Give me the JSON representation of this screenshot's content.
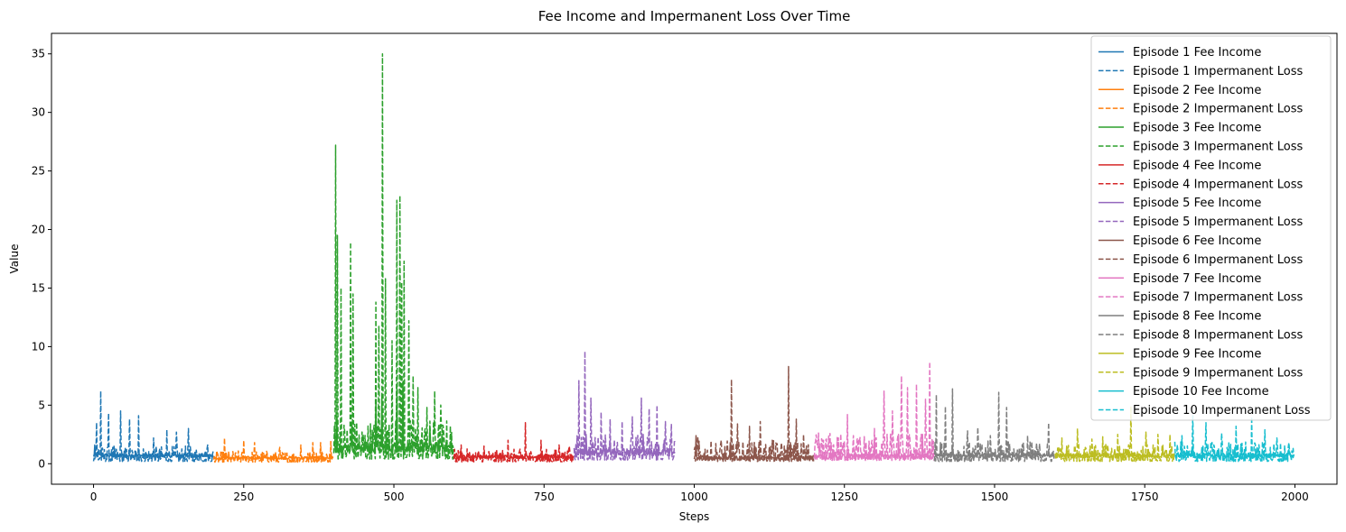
{
  "chart_data": {
    "type": "line",
    "title": "Fee Income and Impermanent Loss Over Time",
    "xlabel": "Steps",
    "ylabel": "Value",
    "xlim": [
      -70,
      2070
    ],
    "ylim": [
      -1.75,
      36.75
    ],
    "xticks": [
      0,
      250,
      500,
      750,
      1000,
      1250,
      1500,
      1750,
      2000
    ],
    "yticks": [
      0,
      5,
      10,
      15,
      20,
      25,
      30,
      35
    ],
    "grid": false,
    "legend_position": "top-right",
    "colors": [
      "#1f77b4",
      "#ff7f0e",
      "#2ca02c",
      "#d62728",
      "#9467bd",
      "#8c564b",
      "#e377c2",
      "#7f7f7f",
      "#bcbd22",
      "#17becf"
    ],
    "series": [
      {
        "name": "Episode 1 Fee Income",
        "episode": 1,
        "style": "solid",
        "x_start": 0,
        "x_end": 199,
        "mean": 0.7,
        "jitter": 0.35,
        "peaks": [
          [
            2,
            1.6
          ],
          [
            8,
            1.2
          ],
          [
            35,
            1.3
          ],
          [
            70,
            1.0
          ],
          [
            120,
            0.9
          ],
          [
            160,
            0.8
          ]
        ]
      },
      {
        "name": "Episode 1 Impermanent Loss",
        "episode": 1,
        "style": "dashed",
        "x_start": 0,
        "x_end": 199,
        "mean": 0.5,
        "jitter": 0.6,
        "peaks": [
          [
            5,
            3.5
          ],
          [
            12,
            6.2
          ],
          [
            25,
            4.3
          ],
          [
            45,
            4.5
          ],
          [
            60,
            3.8
          ],
          [
            75,
            4.1
          ],
          [
            100,
            2.2
          ],
          [
            122,
            2.9
          ],
          [
            138,
            2.7
          ],
          [
            158,
            3.0
          ],
          [
            190,
            1.6
          ]
        ]
      },
      {
        "name": "Episode 2 Fee Income",
        "episode": 2,
        "style": "solid",
        "x_start": 200,
        "x_end": 399,
        "mean": 0.5,
        "jitter": 0.25,
        "peaks": [
          [
            220,
            0.9
          ],
          [
            300,
            0.8
          ],
          [
            380,
            1.0
          ]
        ]
      },
      {
        "name": "Episode 2 Impermanent Loss",
        "episode": 2,
        "style": "dashed",
        "x_start": 200,
        "x_end": 399,
        "mean": 0.35,
        "jitter": 0.45,
        "peaks": [
          [
            218,
            2.2
          ],
          [
            250,
            2.0
          ],
          [
            268,
            1.8
          ],
          [
            310,
            1.4
          ],
          [
            345,
            1.6
          ],
          [
            365,
            1.8
          ],
          [
            378,
            1.8
          ],
          [
            395,
            1.9
          ]
        ]
      },
      {
        "name": "Episode 3 Fee Income",
        "episode": 3,
        "style": "solid",
        "x_start": 400,
        "x_end": 599,
        "mean": 1.4,
        "jitter": 0.9,
        "peaks": [
          [
            405,
            4.0
          ],
          [
            430,
            3.5
          ],
          [
            470,
            5.5
          ],
          [
            480,
            6.0
          ],
          [
            505,
            6.5
          ],
          [
            515,
            7.0
          ],
          [
            560,
            3.0
          ],
          [
            580,
            2.5
          ]
        ]
      },
      {
        "name": "Episode 3 Impermanent Loss",
        "episode": 3,
        "style": "dashed",
        "x_start": 400,
        "x_end": 599,
        "mean": 1.0,
        "jitter": 1.6,
        "peaks": [
          [
            403,
            27.2
          ],
          [
            406,
            19.5
          ],
          [
            412,
            15.0
          ],
          [
            428,
            18.9
          ],
          [
            432,
            14.5
          ],
          [
            470,
            13.8
          ],
          [
            475,
            11.8
          ],
          [
            481,
            35.0
          ],
          [
            486,
            15.8
          ],
          [
            497,
            10.5
          ],
          [
            505,
            22.5
          ],
          [
            510,
            22.9
          ],
          [
            513,
            15.5
          ],
          [
            517,
            17.3
          ],
          [
            525,
            12.2
          ],
          [
            532,
            7.5
          ],
          [
            540,
            6.5
          ],
          [
            555,
            4.8
          ],
          [
            568,
            6.2
          ],
          [
            578,
            5.0
          ]
        ]
      },
      {
        "name": "Episode 4 Fee Income",
        "episode": 4,
        "style": "solid",
        "x_start": 600,
        "x_end": 799,
        "mean": 0.6,
        "jitter": 0.3,
        "peaks": [
          [
            640,
            0.9
          ],
          [
            720,
            1.0
          ],
          [
            780,
            0.9
          ]
        ]
      },
      {
        "name": "Episode 4 Impermanent Loss",
        "episode": 4,
        "style": "dashed",
        "x_start": 600,
        "x_end": 799,
        "mean": 0.4,
        "jitter": 0.5,
        "peaks": [
          [
            612,
            1.6
          ],
          [
            650,
            1.5
          ],
          [
            690,
            2.0
          ],
          [
            719,
            3.5
          ],
          [
            745,
            2.0
          ],
          [
            775,
            1.6
          ],
          [
            792,
            1.5
          ]
        ]
      },
      {
        "name": "Episode 5 Fee Income",
        "episode": 5,
        "style": "solid",
        "x_start": 800,
        "x_end": 968,
        "mean": 1.0,
        "jitter": 0.6,
        "peaks": [
          [
            820,
            2.5
          ],
          [
            860,
            2.0
          ],
          [
            915,
            2.5
          ],
          [
            950,
            2.0
          ]
        ]
      },
      {
        "name": "Episode 5 Impermanent Loss",
        "episode": 5,
        "style": "dashed",
        "x_start": 800,
        "x_end": 968,
        "mean": 0.8,
        "jitter": 1.0,
        "peaks": [
          [
            808,
            7.1
          ],
          [
            818,
            9.6
          ],
          [
            828,
            5.6
          ],
          [
            845,
            4.4
          ],
          [
            860,
            3.8
          ],
          [
            880,
            3.6
          ],
          [
            897,
            4.0
          ],
          [
            912,
            5.6
          ],
          [
            925,
            4.7
          ],
          [
            938,
            5.0
          ],
          [
            952,
            3.6
          ],
          [
            962,
            3.4
          ]
        ]
      },
      {
        "name": "Episode 6 Fee Income",
        "episode": 6,
        "style": "solid",
        "x_start": 1000,
        "x_end": 1199,
        "mean": 0.5,
        "jitter": 0.4,
        "peaks": [
          [
            1003,
            2.4
          ],
          [
            1060,
            1.8
          ],
          [
            1100,
            1.5
          ],
          [
            1160,
            1.8
          ]
        ]
      },
      {
        "name": "Episode 6 Impermanent Loss",
        "episode": 6,
        "style": "dashed",
        "x_start": 1000,
        "x_end": 1199,
        "mean": 0.5,
        "jitter": 0.8,
        "peaks": [
          [
            1006,
            2.3
          ],
          [
            1045,
            2.0
          ],
          [
            1062,
            7.2
          ],
          [
            1072,
            3.4
          ],
          [
            1092,
            3.2
          ],
          [
            1110,
            3.6
          ],
          [
            1130,
            2.0
          ],
          [
            1157,
            8.3
          ],
          [
            1170,
            3.8
          ],
          [
            1182,
            2.5
          ]
        ]
      },
      {
        "name": "Episode 7 Fee Income",
        "episode": 7,
        "style": "solid",
        "x_start": 1200,
        "x_end": 1399,
        "mean": 0.6,
        "jitter": 0.5,
        "peaks": [
          [
            1300,
            2.0
          ],
          [
            1340,
            2.5
          ],
          [
            1380,
            2.5
          ]
        ]
      },
      {
        "name": "Episode 7 Impermanent Loss",
        "episode": 7,
        "style": "dashed",
        "x_start": 1200,
        "x_end": 1399,
        "mean": 0.7,
        "jitter": 1.1,
        "peaks": [
          [
            1215,
            2.0
          ],
          [
            1255,
            4.2
          ],
          [
            1300,
            3.0
          ],
          [
            1316,
            6.2
          ],
          [
            1330,
            4.5
          ],
          [
            1345,
            7.5
          ],
          [
            1355,
            6.5
          ],
          [
            1370,
            6.8
          ],
          [
            1385,
            5.5
          ],
          [
            1392,
            8.7
          ]
        ]
      },
      {
        "name": "Episode 8 Fee Income",
        "episode": 8,
        "style": "solid",
        "x_start": 1400,
        "x_end": 1599,
        "mean": 0.7,
        "jitter": 0.4,
        "peaks": [
          [
            1410,
            1.8
          ],
          [
            1430,
            1.5
          ],
          [
            1510,
            1.5
          ],
          [
            1590,
            1.2
          ]
        ]
      },
      {
        "name": "Episode 8 Impermanent Loss",
        "episode": 8,
        "style": "dashed",
        "x_start": 1400,
        "x_end": 1599,
        "mean": 0.5,
        "jitter": 0.8,
        "peaks": [
          [
            1403,
            5.9
          ],
          [
            1418,
            4.9
          ],
          [
            1430,
            6.4
          ],
          [
            1455,
            2.8
          ],
          [
            1472,
            3.1
          ],
          [
            1493,
            2.4
          ],
          [
            1507,
            6.1
          ],
          [
            1520,
            4.8
          ],
          [
            1555,
            2.4
          ],
          [
            1590,
            3.5
          ]
        ]
      },
      {
        "name": "Episode 9 Fee Income",
        "episode": 9,
        "style": "solid",
        "x_start": 1600,
        "x_end": 1799,
        "mean": 0.7,
        "jitter": 0.4,
        "peaks": [
          [
            1620,
            1.5
          ],
          [
            1700,
            1.2
          ],
          [
            1780,
            1.3
          ]
        ]
      },
      {
        "name": "Episode 9 Impermanent Loss",
        "episode": 9,
        "style": "dashed",
        "x_start": 1600,
        "x_end": 1799,
        "mean": 0.5,
        "jitter": 0.7,
        "peaks": [
          [
            1612,
            2.2
          ],
          [
            1638,
            3.0
          ],
          [
            1662,
            2.1
          ],
          [
            1680,
            2.3
          ],
          [
            1705,
            2.5
          ],
          [
            1727,
            4.9
          ],
          [
            1752,
            2.7
          ],
          [
            1772,
            2.5
          ],
          [
            1792,
            2.5
          ]
        ]
      },
      {
        "name": "Episode 10 Fee Income",
        "episode": 10,
        "style": "solid",
        "x_start": 1800,
        "x_end": 1999,
        "mean": 0.7,
        "jitter": 0.4,
        "peaks": [
          [
            1830,
            1.5
          ],
          [
            1900,
            1.4
          ],
          [
            1990,
            1.2
          ]
        ]
      },
      {
        "name": "Episode 10 Impermanent Loss",
        "episode": 10,
        "style": "dashed",
        "x_start": 1800,
        "x_end": 1999,
        "mean": 0.5,
        "jitter": 0.8,
        "peaks": [
          [
            1812,
            2.4
          ],
          [
            1830,
            4.1
          ],
          [
            1852,
            3.5
          ],
          [
            1878,
            2.6
          ],
          [
            1902,
            3.2
          ],
          [
            1928,
            4.0
          ],
          [
            1950,
            2.9
          ],
          [
            1970,
            2.2
          ],
          [
            1990,
            1.8
          ]
        ]
      }
    ]
  }
}
